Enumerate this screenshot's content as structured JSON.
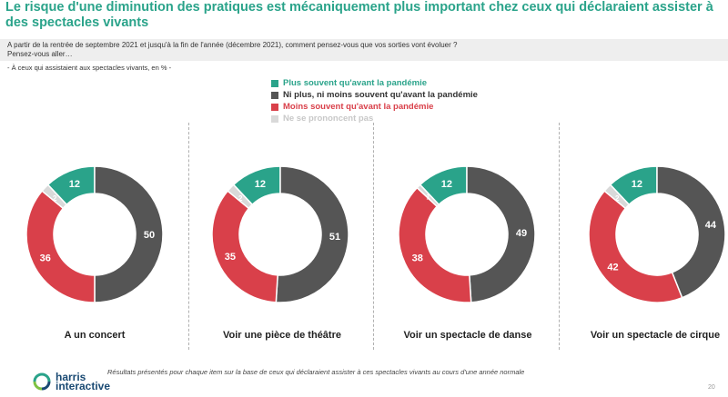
{
  "title": "Le risque d'une diminution des pratiques est mécaniquement plus important chez ceux qui déclaraient assister à des spectacles vivants",
  "question": {
    "line1": "A partir de la rentrée de septembre 2021 et jusqu'à la fin de l'année (décembre 2021), comment pensez-vous que vos sorties vont évoluer ?",
    "line2": "Pensez-vous aller…"
  },
  "base_note": "- À ceux qui assistaient aux spectacles vivants, en % -",
  "colors": {
    "plus": "#2aa38a",
    "ni": "#555555",
    "moins": "#d9404a",
    "nsp": "#d9d9d9"
  },
  "chart_data": {
    "type": "donut",
    "legend": [
      {
        "key": "plus",
        "label": "Plus souvent qu'avant la pandémie"
      },
      {
        "key": "ni",
        "label": "Ni plus, ni moins souvent qu'avant la pandémie"
      },
      {
        "key": "moins",
        "label": "Moins souvent qu'avant la pandémie"
      },
      {
        "key": "nsp",
        "label": "Ne se prononcent pas"
      }
    ],
    "items": [
      {
        "label": "A un concert",
        "plus": 12,
        "ni": 50,
        "moins": 36,
        "nsp": 2
      },
      {
        "label": "Voir une pièce de théâtre",
        "plus": 12,
        "ni": 51,
        "moins": 35,
        "nsp": 2
      },
      {
        "label": "Voir un spectacle de danse",
        "plus": 12,
        "ni": 49,
        "moins": 38,
        "nsp": 1
      },
      {
        "label": "Voir un spectacle de cirque",
        "plus": 12,
        "ni": 44,
        "moins": 42,
        "nsp": 2
      }
    ]
  },
  "footnote": "Résultats présentés pour chaque item sur la base de ceux qui déclaraient assister à ces spectacles vivants au cours d'une année normale",
  "logo": {
    "line1": "harris",
    "line2": "interactive"
  },
  "page_number": "20"
}
